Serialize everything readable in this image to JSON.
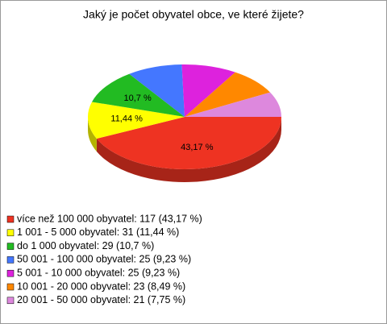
{
  "chart_data": {
    "type": "pie",
    "title": "Jaký je počet obyvatel obce, ve které žijete?",
    "categories": [
      "více než 100 000 obyvatel: 117 (43,17 %)",
      "1 001 - 5 000 obyvatel: 31 (11,44 %)",
      "do 1 000 obyvatel: 29 (10,7 %)",
      "50 001 - 100 000 obyvatel: 25 (9,23 %)",
      "5 001 - 10 000 obyvatel: 25 (9,23 %)",
      "10 001 - 20 000 obyvatel: 23 (8,49 %)",
      "20 001 - 50 000 obyvatel: 21 (7,75 %)"
    ],
    "values": [
      43.17,
      11.44,
      10.7,
      9.23,
      9.23,
      8.49,
      7.75
    ],
    "value_labels": [
      "43,17 %",
      "11,44 %",
      "10,7 %",
      null,
      null,
      null,
      null
    ],
    "colors": [
      "#ee3322",
      "#ffff00",
      "#22bb22",
      "#4477ff",
      "#dd22dd",
      "#ff8800",
      "#dd88dd"
    ]
  }
}
